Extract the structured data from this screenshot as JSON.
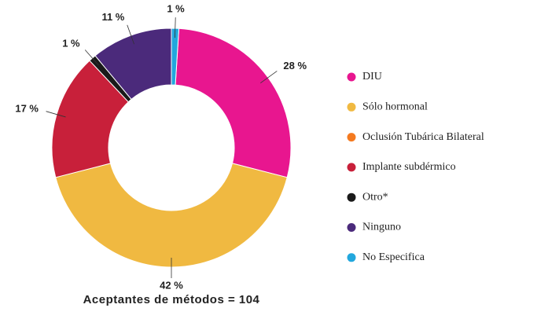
{
  "chart_data": {
    "type": "donut",
    "categories": [
      "DIU",
      "Sólo hormonal",
      "Oclusión Tubárica Bilateral",
      "Implante subdérmico",
      "Otro*",
      "Ninguno",
      "No Especifica"
    ],
    "values": [
      28,
      42,
      0,
      17,
      1,
      11,
      1
    ],
    "value_labels": [
      "28 %",
      "42 %",
      null,
      "17 %",
      "1 %",
      "11 %",
      "1 %"
    ],
    "colors": [
      "#e8168f",
      "#f0b941",
      "#f47a20",
      "#c8203a",
      "#1a1a1a",
      "#4b2a7b",
      "#22a7dd"
    ],
    "caption": "Aceptantes de métodos = 104",
    "legend": "right"
  }
}
